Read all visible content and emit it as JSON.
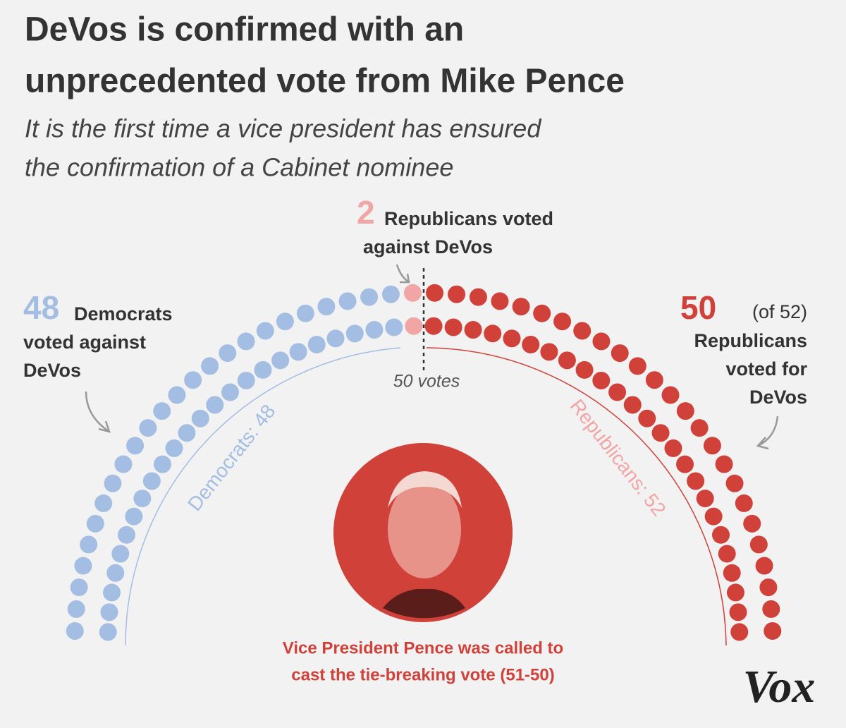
{
  "chart_data": {
    "type": "parliament",
    "title": [
      "DeVos is confirmed with an",
      "unprecedented vote from Mike Pence"
    ],
    "subtitle": [
      "It is the first time a vice president has ensured",
      "the confirmation of a Cabinet nominee"
    ],
    "rows": 2,
    "groups": [
      {
        "value": 48,
        "color": "#a3bde3",
        "label": [
          "Democrats",
          "voted against",
          "DeVos"
        ]
      },
      {
        "value": 2,
        "color": "#f2a5a5",
        "label": [
          "Republicans voted",
          "against DeVos"
        ]
      },
      {
        "value": 50,
        "color": "#d0413a",
        "label": [
          "(of 52)",
          "Republicans",
          "voted for",
          "DeVos"
        ]
      }
    ],
    "threshold_label": "50 votes",
    "arc_labels": [
      "Democrats: 48",
      "Republicans: 52"
    ],
    "note": [
      "Vice President Pence was called to",
      "cast the tie-breaking vote (51-50)"
    ],
    "source": "Vox"
  }
}
